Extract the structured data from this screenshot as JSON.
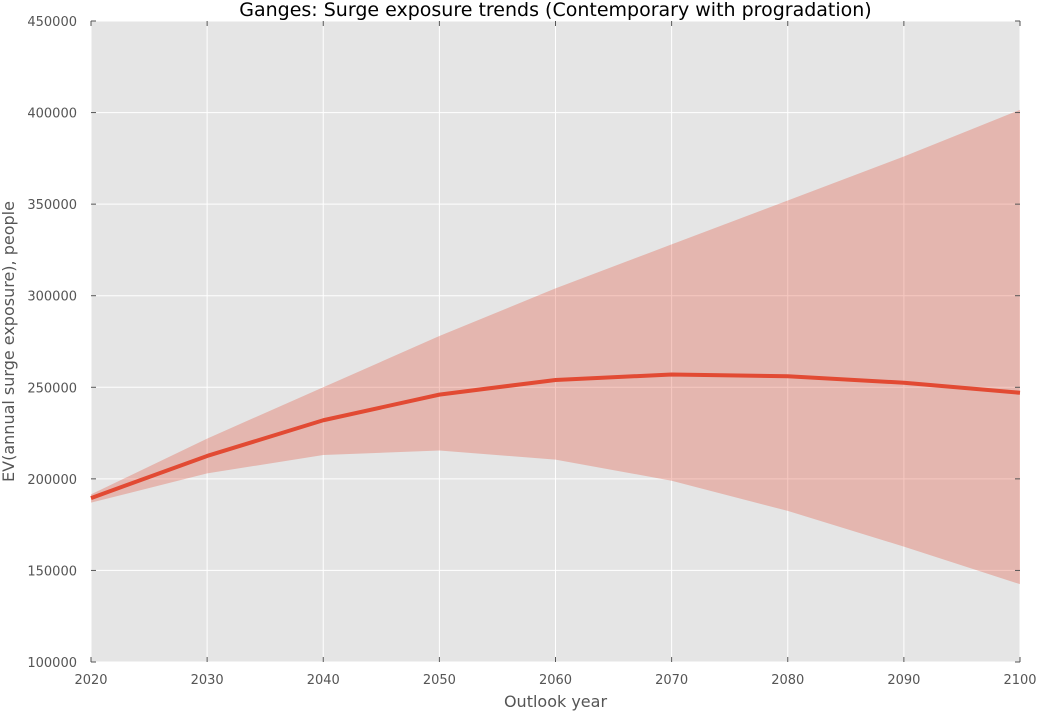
{
  "chart_data": {
    "type": "line",
    "title": "Ganges: Surge exposure trends (Contemporary with progradation)",
    "xlabel": "Outlook year",
    "ylabel": "EV(annual surge exposure), people",
    "xlim": [
      2020,
      2100
    ],
    "ylim": [
      100000,
      450000
    ],
    "x_ticks": [
      "2020",
      "2030",
      "2040",
      "2050",
      "2060",
      "2070",
      "2080",
      "2090",
      "2100"
    ],
    "y_ticks": [
      "100000",
      "150000",
      "200000",
      "250000",
      "300000",
      "350000",
      "400000",
      "450000"
    ],
    "grid": true,
    "x": [
      2020,
      2030,
      2040,
      2050,
      2060,
      2070,
      2080,
      2090,
      2100
    ],
    "series": [
      {
        "values": [
          189500,
          212500,
          232000,
          246000,
          254000,
          257000,
          256000,
          252500,
          247000
        ],
        "band_lower": [
          187000,
          203000,
          213000,
          215500,
          210500,
          199000,
          182500,
          163000,
          142500
        ],
        "band_upper": [
          191500,
          222000,
          250000,
          278000,
          304000,
          328000,
          352000,
          376000,
          401500
        ],
        "color": "#e24a33"
      }
    ],
    "colors": {
      "plot_bg": "#e5e5e5",
      "grid": "#ffffff",
      "band": "#e24a33"
    }
  }
}
